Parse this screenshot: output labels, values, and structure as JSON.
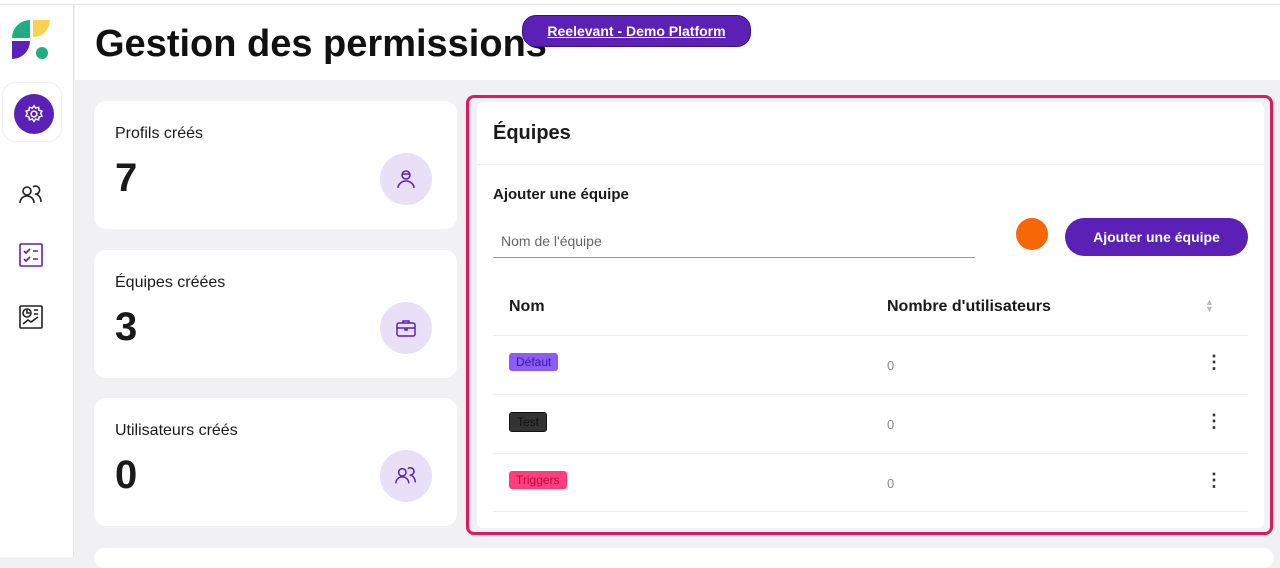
{
  "header": {
    "title": "Gestion des permissions",
    "platform_badge": "Reelevant - Demo Platform"
  },
  "sidebar": {
    "items": [
      {
        "icon": "gear-icon",
        "active": true
      },
      {
        "icon": "users-icon"
      },
      {
        "icon": "checklist-icon"
      },
      {
        "icon": "report-icon"
      }
    ]
  },
  "stats": [
    {
      "label": "Profils créés",
      "value": "7",
      "icon": "profile-icon"
    },
    {
      "label": "Équipes créées",
      "value": "3",
      "icon": "briefcase-icon"
    },
    {
      "label": "Utilisateurs créés",
      "value": "0",
      "icon": "users-icon"
    }
  ],
  "teams": {
    "title": "Équipes",
    "add_label": "Ajouter une équipe",
    "input_placeholder": "Nom de l'équipe",
    "input_value": "",
    "color": "#f76707",
    "add_button": "Ajouter une équipe",
    "columns": [
      "Nom",
      "Nombre d'utilisateurs"
    ],
    "rows": [
      {
        "name": "Défaut",
        "count": "0",
        "color": "#8b5cf6",
        "text_color": "#3b1a9a"
      },
      {
        "name": "Test",
        "count": "0",
        "color": "#333333",
        "text_color": "#111111"
      },
      {
        "name": "Triggers",
        "count": "0",
        "color": "#ff3d7f",
        "text_color": "#b0103f"
      }
    ]
  }
}
